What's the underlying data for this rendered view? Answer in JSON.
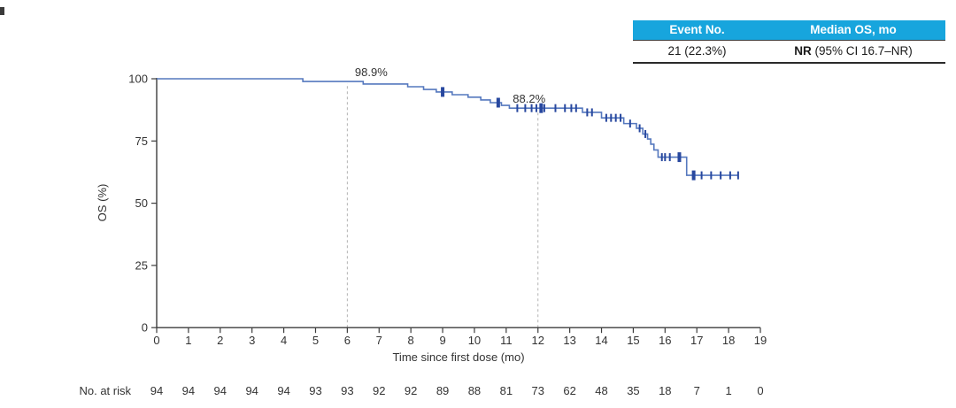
{
  "summary_table": {
    "header_bg": "#17A5DD",
    "headers": {
      "event_no": "Event No.",
      "median_os": "Median OS, mo"
    },
    "row": {
      "event_no": "21 (22.3%)",
      "median_os_bold": "NR",
      "median_os_rest": " (95% CI 16.7–NR)"
    }
  },
  "chart_data": {
    "type": "line",
    "subtype": "kaplan-meier-step",
    "title": "",
    "xlabel": "Time since first dose (mo)",
    "ylabel": "OS (%)",
    "xlim": [
      0,
      19
    ],
    "ylim": [
      0,
      100
    ],
    "grid": false,
    "xticks": [
      0,
      1,
      2,
      3,
      4,
      5,
      6,
      7,
      8,
      9,
      10,
      11,
      12,
      13,
      14,
      15,
      16,
      17,
      18,
      19
    ],
    "yticks": [
      0,
      25,
      50,
      75,
      100
    ],
    "line_color": "#5578BE",
    "censor_color": "#28489F",
    "axis_color": "#3c3c3c",
    "dash_color": "#b3b3b3",
    "steps": [
      [
        0,
        100
      ],
      [
        4.6,
        98.9
      ],
      [
        6.5,
        97.9
      ],
      [
        7.9,
        96.8
      ],
      [
        8.4,
        95.7
      ],
      [
        8.8,
        94.7
      ],
      [
        9.3,
        93.6
      ],
      [
        9.8,
        92.6
      ],
      [
        10.2,
        91.5
      ],
      [
        10.5,
        90.4
      ],
      [
        10.85,
        89.3
      ],
      [
        11.1,
        88.2
      ],
      [
        13.4,
        86.5
      ],
      [
        14.0,
        84.3
      ],
      [
        14.7,
        82.0
      ],
      [
        15.1,
        80.1
      ],
      [
        15.3,
        77.8
      ],
      [
        15.45,
        75.8
      ],
      [
        15.55,
        73.7
      ],
      [
        15.65,
        71.4
      ],
      [
        15.78,
        68.5
      ],
      [
        16.68,
        61.2
      ]
    ],
    "end_time": 18.3,
    "censors": [
      [
        9.0,
        94.7,
        1
      ],
      [
        10.75,
        90.4,
        1
      ],
      [
        11.35,
        88.2,
        0
      ],
      [
        11.6,
        88.2,
        0
      ],
      [
        11.8,
        88.2,
        0
      ],
      [
        11.95,
        88.2,
        0
      ],
      [
        12.1,
        88.2,
        1
      ],
      [
        12.2,
        88.2,
        0
      ],
      [
        12.55,
        88.2,
        0
      ],
      [
        12.85,
        88.2,
        0
      ],
      [
        13.05,
        88.2,
        0
      ],
      [
        13.2,
        88.2,
        0
      ],
      [
        13.55,
        86.5,
        0
      ],
      [
        13.7,
        86.5,
        0
      ],
      [
        14.15,
        84.3,
        0
      ],
      [
        14.3,
        84.3,
        0
      ],
      [
        14.45,
        84.3,
        0
      ],
      [
        14.6,
        84.3,
        0
      ],
      [
        14.9,
        82.0,
        0
      ],
      [
        15.2,
        80.1,
        0
      ],
      [
        15.38,
        77.8,
        0
      ],
      [
        15.9,
        68.5,
        0
      ],
      [
        16.0,
        68.5,
        0
      ],
      [
        16.15,
        68.5,
        0
      ],
      [
        16.45,
        68.5,
        1
      ],
      [
        16.9,
        61.2,
        1
      ],
      [
        17.15,
        61.2,
        0
      ],
      [
        17.45,
        61.2,
        0
      ],
      [
        17.75,
        61.2,
        0
      ],
      [
        18.05,
        61.2,
        0
      ],
      [
        18.3,
        61.2,
        0
      ]
    ],
    "annotations": [
      {
        "x": 6,
        "y": 98.9,
        "label": "98.9%",
        "dx": 27
      },
      {
        "x": 12,
        "y": 88.2,
        "label": "88.2%",
        "dx": -10
      }
    ],
    "no_at_risk": {
      "label": "No. at risk",
      "values": [
        94,
        94,
        94,
        94,
        94,
        93,
        93,
        92,
        92,
        89,
        88,
        81,
        73,
        62,
        48,
        35,
        18,
        7,
        1,
        0
      ]
    }
  }
}
